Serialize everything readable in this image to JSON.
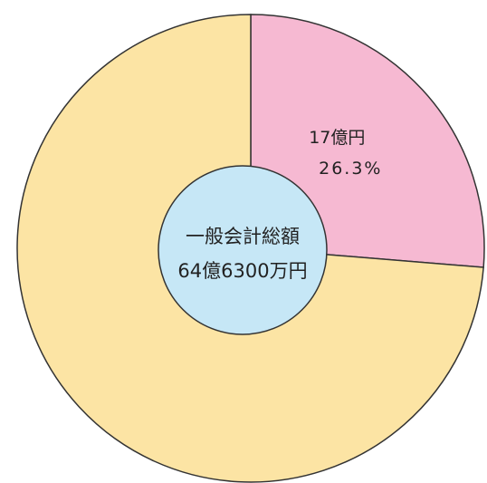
{
  "chart_data": {
    "type": "pie",
    "values": [
      26.3,
      73.7
    ],
    "value_labels": [
      "26.3%",
      null
    ],
    "amount_labels": [
      "17億円",
      null
    ],
    "colors": [
      "#f6b9d2",
      "#fce4a4"
    ],
    "center_labels": [
      "一般会計総額",
      "64億6300万円"
    ],
    "center_color": "#c6e7f6"
  }
}
